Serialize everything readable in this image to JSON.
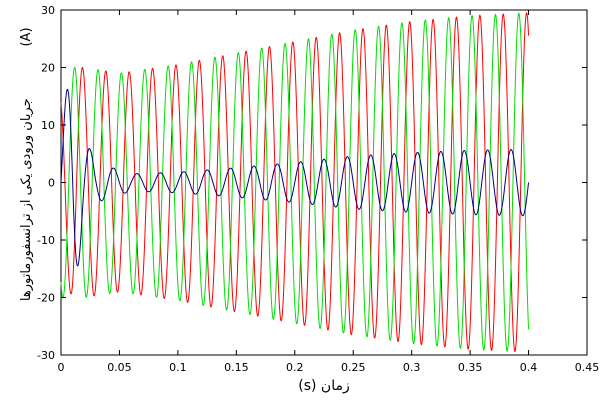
{
  "chart_data": {
    "type": "line",
    "title": "",
    "xlabel": "زمان (s)",
    "ylabel": "جریان ورودی یکی از ترانسفورماتورها",
    "ylabel_unit": "(A)",
    "xlim": [
      0,
      0.45
    ],
    "ylim": [
      -30,
      30
    ],
    "xticks": [
      "0",
      "0.05",
      "0.1",
      "0.15",
      "0.2",
      "0.25",
      "0.3",
      "0.35",
      "0.4",
      "0.45"
    ],
    "yticks": [
      "30",
      "20",
      "10",
      "0",
      "-10",
      "-20",
      "-30"
    ],
    "grid": false,
    "legend": "none",
    "frequency_hz": 50,
    "series": [
      {
        "color": "#ff0000",
        "phase_deg": 120,
        "envelope": {
          "t": [
            0,
            0.01,
            0.02,
            0.05,
            0.1,
            0.15,
            0.2,
            0.25,
            0.3,
            0.35,
            0.4
          ],
          "amp": [
            16,
            20,
            20,
            19,
            20.5,
            22.5,
            24.5,
            26.5,
            28,
            29,
            29.5
          ]
        }
      },
      {
        "color": "#00dd00",
        "phase_deg": 240,
        "envelope": {
          "t": [
            0,
            0.01,
            0.02,
            0.05,
            0.1,
            0.15,
            0.2,
            0.25,
            0.3,
            0.35,
            0.4
          ],
          "amp": [
            20,
            20,
            20,
            19,
            20.5,
            22.5,
            24.5,
            26.5,
            28,
            29,
            29.5
          ]
        }
      },
      {
        "color": "#000080",
        "phase_deg": 0,
        "envelope": {
          "t": [
            0,
            0.01,
            0.02,
            0.03,
            0.06,
            0.1,
            0.14,
            0.2,
            0.25,
            0.3,
            0.35,
            0.4
          ],
          "amp": [
            12,
            20,
            8,
            3.5,
            1.5,
            1.8,
            2.4,
            3.5,
            4.6,
            5.2,
            5.6,
            5.8
          ]
        }
      }
    ]
  }
}
